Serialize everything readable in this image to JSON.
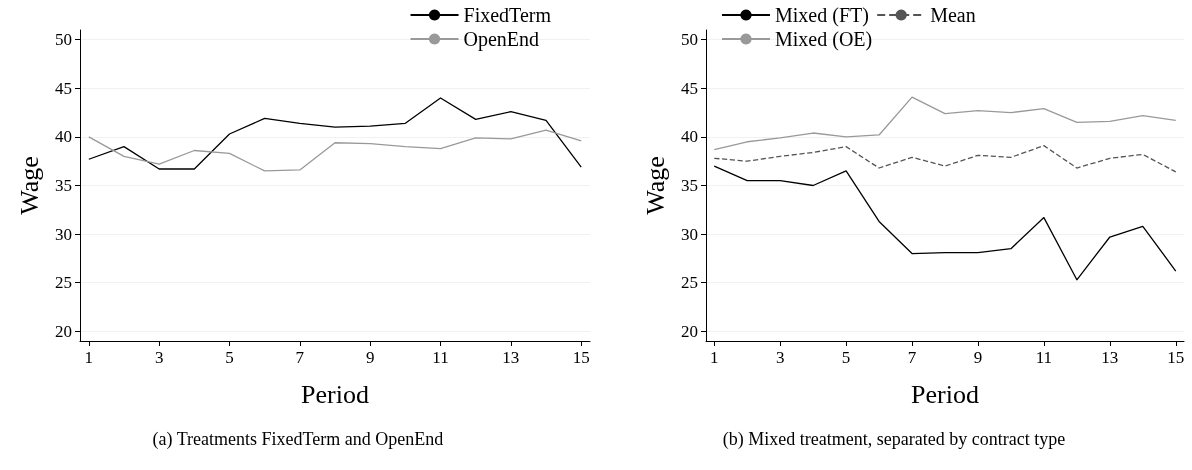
{
  "chart_data": [
    {
      "type": "line",
      "xlabel": "Period",
      "ylabel": "Wage",
      "x": [
        1,
        2,
        3,
        4,
        5,
        6,
        7,
        8,
        9,
        10,
        11,
        12,
        13,
        14,
        15
      ],
      "series": [
        {
          "name": "FixedTerm",
          "color": "#000000",
          "values": [
            37.7,
            39.0,
            36.7,
            36.7,
            40.3,
            41.9,
            41.4,
            41.0,
            41.1,
            41.4,
            44.0,
            41.8,
            42.6,
            41.7,
            36.9
          ]
        },
        {
          "name": "OpenEnd",
          "color": "#999999",
          "values": [
            40.0,
            38.0,
            37.2,
            38.6,
            38.3,
            36.5,
            36.6,
            39.4,
            39.3,
            39.0,
            38.8,
            39.9,
            39.8,
            40.7,
            39.6
          ]
        }
      ],
      "xlim": [
        0.75,
        15.25
      ],
      "xticks": [
        1,
        3,
        5,
        7,
        9,
        11,
        13,
        15
      ],
      "ylim": [
        19,
        51
      ],
      "yticks": [
        20,
        25,
        30,
        35,
        40,
        45,
        50
      ],
      "grid": "y",
      "legend": "top right",
      "marker": "none",
      "line_style": "solid",
      "annotations": [
        "(a) Treatments FixedTerm and OpenEnd"
      ]
    },
    {
      "type": "line",
      "xlabel": "Period",
      "ylabel": "Wage",
      "x": [
        1,
        2,
        3,
        4,
        5,
        6,
        7,
        8,
        9,
        10,
        11,
        12,
        13,
        14,
        15
      ],
      "series": [
        {
          "name": "Mixed (FT)",
          "color": "#000000",
          "values": [
            37.0,
            35.5,
            35.5,
            35.0,
            36.5,
            31.3,
            28.0,
            28.1,
            28.1,
            28.5,
            31.7,
            25.3,
            29.7,
            30.8,
            26.2
          ]
        },
        {
          "name": "Mixed (OE)",
          "color": "#999999",
          "values": [
            38.7,
            39.5,
            39.9,
            40.4,
            40.0,
            40.2,
            44.1,
            42.4,
            42.7,
            42.5,
            42.9,
            41.5,
            41.6,
            42.2,
            41.7
          ]
        },
        {
          "name": "Mean",
          "color": "#555555",
          "line_style": "dashed",
          "values": [
            37.8,
            37.5,
            38.0,
            38.4,
            39.0,
            36.8,
            37.9,
            37.0,
            38.1,
            37.9,
            39.1,
            36.8,
            37.8,
            38.2,
            36.4
          ]
        }
      ],
      "xlim": [
        0.75,
        15.25
      ],
      "xticks": [
        1,
        3,
        5,
        7,
        9,
        11,
        13,
        15
      ],
      "ylim": [
        19,
        51
      ],
      "yticks": [
        20,
        25,
        30,
        35,
        40,
        45,
        50
      ],
      "grid": "y",
      "legend": "top",
      "marker": "none",
      "line_style": "solid",
      "annotations": [
        "(b) Mixed treatment, separated by contract type"
      ]
    }
  ]
}
